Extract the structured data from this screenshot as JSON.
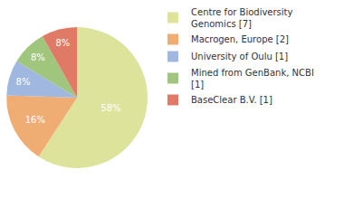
{
  "chart_data": {
    "type": "pie",
    "categories": [
      "Centre for Biodiversity Genomics [7]",
      "Macrogen, Europe [2]",
      "University of Oulu [1]",
      "Mined from GenBank, NCBI [1]",
      "BaseClear B.V. [1]"
    ],
    "values": [
      58,
      16,
      8,
      8,
      8
    ],
    "value_labels": [
      "58%",
      "16%",
      "8%",
      "8%",
      "8%"
    ],
    "data_labels": true,
    "legend": "right",
    "colors": [
      "#dde39b",
      "#efac73",
      "#a0b8df",
      "#a0c57c",
      "#de7a66"
    ]
  }
}
